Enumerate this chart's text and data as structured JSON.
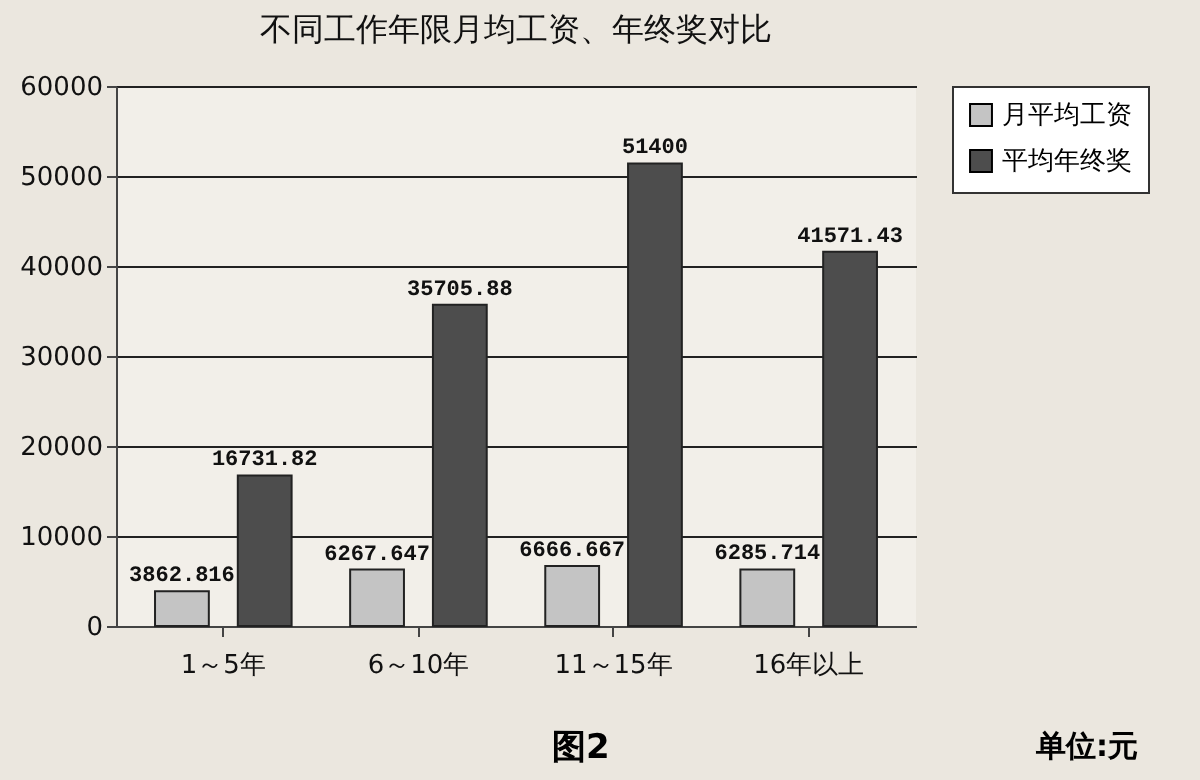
{
  "chart_data": {
    "type": "bar",
    "title": "不同工作年限月均工资、年终奖对比",
    "categories": [
      "1～5年",
      "6～10年",
      "11～15年",
      "16年以上"
    ],
    "series": [
      {
        "name": "月平均工资",
        "color": "#c4c4c4",
        "values": [
          3862.816,
          6267.647,
          6666.667,
          6285.714
        ]
      },
      {
        "name": "平均年终奖",
        "color": "#4d4d4d",
        "values": [
          16731.82,
          35705.88,
          51400,
          41571.43
        ]
      }
    ],
    "ylim": [
      0,
      60000
    ],
    "yticks": [
      0,
      10000,
      20000,
      30000,
      40000,
      50000,
      60000
    ],
    "grid": "y",
    "legend": "right",
    "data_labels": true,
    "annotations": [
      "图2",
      "单位:元"
    ]
  }
}
